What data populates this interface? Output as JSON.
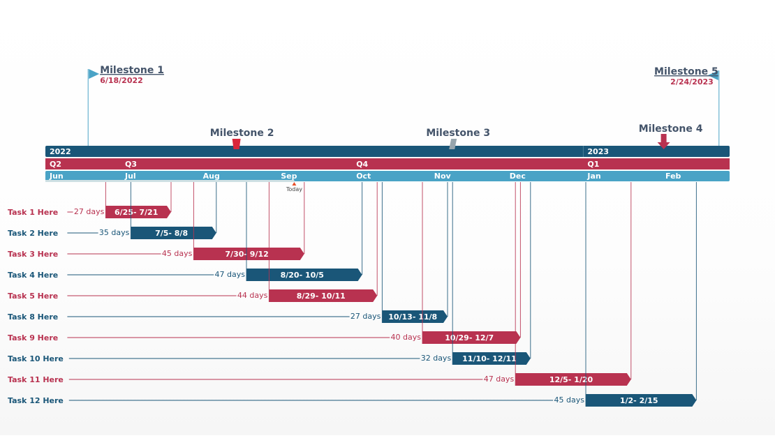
{
  "colors": {
    "dark_blue": "#1a5678",
    "red": "#b83250",
    "light_blue": "#4aa3c6",
    "milestone_text": "#44546a",
    "milestone3": "#97a5ad",
    "milestone2": "#d9263b"
  },
  "chart_data": {
    "type": "gantt",
    "axis_range": [
      "2022-06-01",
      "2023-02-28"
    ],
    "years": [
      {
        "label": "2022",
        "date": "2022-06-01"
      },
      {
        "label": "2023",
        "date": "2023-01-01"
      }
    ],
    "quarters": [
      {
        "label": "Q2",
        "date": "2022-06-01"
      },
      {
        "label": "Q3",
        "date": "2022-07-01"
      },
      {
        "label": "Q4",
        "date": "2022-10-01"
      },
      {
        "label": "Q1",
        "date": "2023-01-01"
      }
    ],
    "months": [
      {
        "label": "Jun",
        "date": "2022-06-01"
      },
      {
        "label": "Jul",
        "date": "2022-07-01"
      },
      {
        "label": "Aug",
        "date": "2022-08-01"
      },
      {
        "label": "Sep",
        "date": "2022-09-01"
      },
      {
        "label": "Oct",
        "date": "2022-10-01"
      },
      {
        "label": "Nov",
        "date": "2022-11-01"
      },
      {
        "label": "Dec",
        "date": "2022-12-01"
      },
      {
        "label": "Jan",
        "date": "2023-01-01"
      },
      {
        "label": "Feb",
        "date": "2023-02-01"
      }
    ],
    "today": {
      "label": "Today",
      "date": "2022-09-08"
    },
    "milestones": [
      {
        "name": "Milestone 1",
        "date_label": "6/18/2022",
        "date": "2022-06-18",
        "style": "flag-right"
      },
      {
        "name": "Milestone 2",
        "date": "2022-08-16",
        "style": "trapezoid"
      },
      {
        "name": "Milestone 3",
        "date": "2022-11-10",
        "style": "parallelogram"
      },
      {
        "name": "Milestone 4",
        "date": "2023-02-02",
        "style": "arrow-down"
      },
      {
        "name": "Milestone 5",
        "date_label": "2/24/2023",
        "date": "2023-02-24",
        "style": "flag-left"
      }
    ],
    "tasks": [
      {
        "name": "Task 1 Here",
        "start": "2022-06-25",
        "end": "2022-07-21",
        "label": "6/25- 7/21",
        "duration": "27 days",
        "color": "red"
      },
      {
        "name": "Task 2 Here",
        "start": "2022-07-05",
        "end": "2022-08-08",
        "label": "7/5- 8/8",
        "duration": "35 days",
        "color": "blue"
      },
      {
        "name": "Task 3 Here",
        "start": "2022-07-30",
        "end": "2022-09-12",
        "label": "7/30- 9/12",
        "duration": "45 days",
        "color": "red"
      },
      {
        "name": "Task 4 Here",
        "start": "2022-08-20",
        "end": "2022-10-05",
        "label": "8/20- 10/5",
        "duration": "47 days",
        "color": "blue"
      },
      {
        "name": "Task 5 Here",
        "start": "2022-08-29",
        "end": "2022-10-11",
        "label": "8/29- 10/11",
        "duration": "44 days",
        "color": "red"
      },
      {
        "name": "Task 8 Here",
        "start": "2022-10-13",
        "end": "2022-11-08",
        "label": "10/13- 11/8",
        "duration": "27 days",
        "color": "blue"
      },
      {
        "name": "Task 9 Here",
        "start": "2022-10-29",
        "end": "2022-12-07",
        "label": "10/29- 12/7",
        "duration": "40 days",
        "color": "red"
      },
      {
        "name": "Task 10 Here",
        "start": "2022-11-10",
        "end": "2022-12-11",
        "label": "11/10- 12/11",
        "duration": "32 days",
        "color": "blue"
      },
      {
        "name": "Task 11 Here",
        "start": "2022-12-05",
        "end": "2023-01-20",
        "label": "12/5- 1/20",
        "duration": "47 days",
        "color": "red"
      },
      {
        "name": "Task 12 Here",
        "start": "2023-01-02",
        "end": "2023-02-15",
        "label": "1/2- 2/15",
        "duration": "45 days",
        "color": "blue"
      }
    ]
  }
}
